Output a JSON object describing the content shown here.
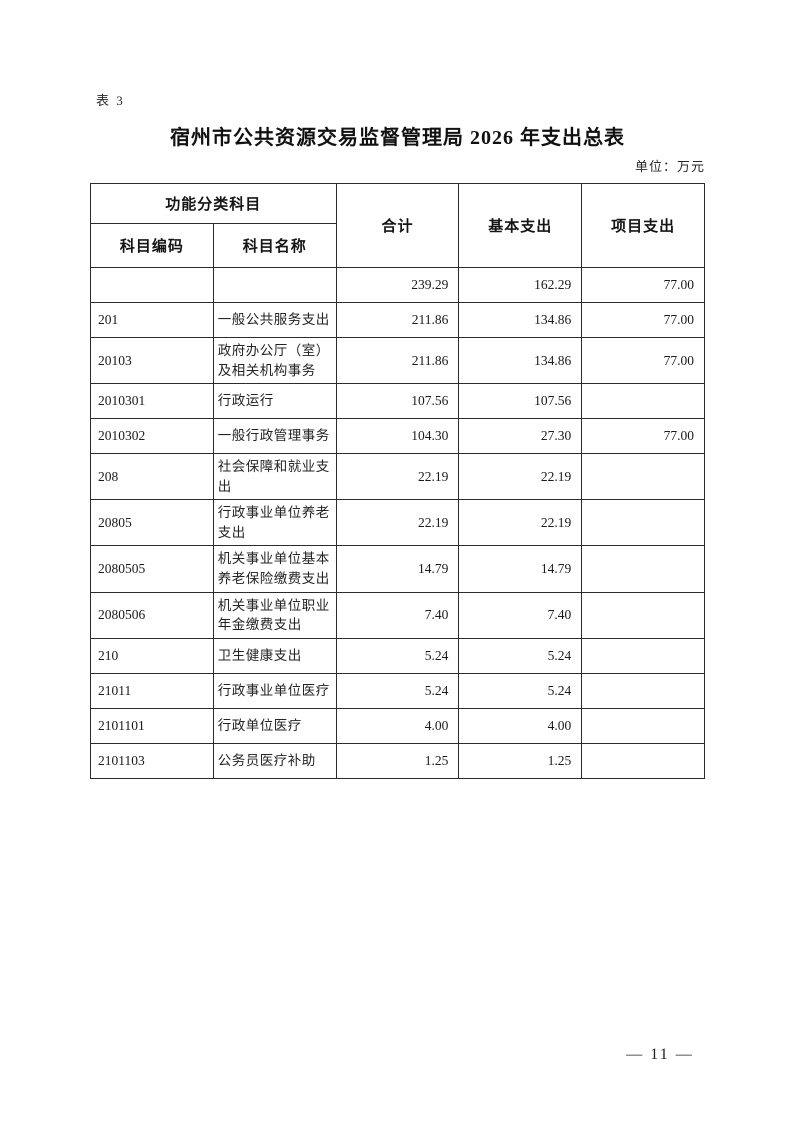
{
  "page": {
    "table_label": "表 3",
    "title": "宿州市公共资源交易监督管理局 2026 年支出总表",
    "unit_note": "单位：万元",
    "page_number": "— 11 —"
  },
  "table": {
    "header": {
      "group": "功能分类科目",
      "code": "科目编码",
      "name": "科目名称",
      "total": "合计",
      "basic": "基本支出",
      "project": "项目支出"
    },
    "rows": [
      {
        "code": "",
        "name": "",
        "total": "239.29",
        "basic": "162.29",
        "project": "77.00"
      },
      {
        "code": "201",
        "name": "一般公共服务支出",
        "total": "211.86",
        "basic": "134.86",
        "project": "77.00"
      },
      {
        "code": "20103",
        "name": "政府办公厅（室）及相关机构事务",
        "total": "211.86",
        "basic": "134.86",
        "project": "77.00"
      },
      {
        "code": "2010301",
        "name": "行政运行",
        "total": "107.56",
        "basic": "107.56",
        "project": ""
      },
      {
        "code": "2010302",
        "name": "一般行政管理事务",
        "total": "104.30",
        "basic": "27.30",
        "project": "77.00"
      },
      {
        "code": "208",
        "name": "社会保障和就业支出",
        "total": "22.19",
        "basic": "22.19",
        "project": ""
      },
      {
        "code": "20805",
        "name": "行政事业单位养老支出",
        "total": "22.19",
        "basic": "22.19",
        "project": ""
      },
      {
        "code": "2080505",
        "name": "机关事业单位基本养老保险缴费支出",
        "total": "14.79",
        "basic": "14.79",
        "project": ""
      },
      {
        "code": "2080506",
        "name": "机关事业单位职业年金缴费支出",
        "total": "7.40",
        "basic": "7.40",
        "project": ""
      },
      {
        "code": "210",
        "name": "卫生健康支出",
        "total": "5.24",
        "basic": "5.24",
        "project": ""
      },
      {
        "code": "21011",
        "name": "行政事业单位医疗",
        "total": "5.24",
        "basic": "5.24",
        "project": ""
      },
      {
        "code": "2101101",
        "name": "行政单位医疗",
        "total": "4.00",
        "basic": "4.00",
        "project": ""
      },
      {
        "code": "2101103",
        "name": "公务员医疗补助",
        "total": "1.25",
        "basic": "1.25",
        "project": ""
      }
    ]
  }
}
